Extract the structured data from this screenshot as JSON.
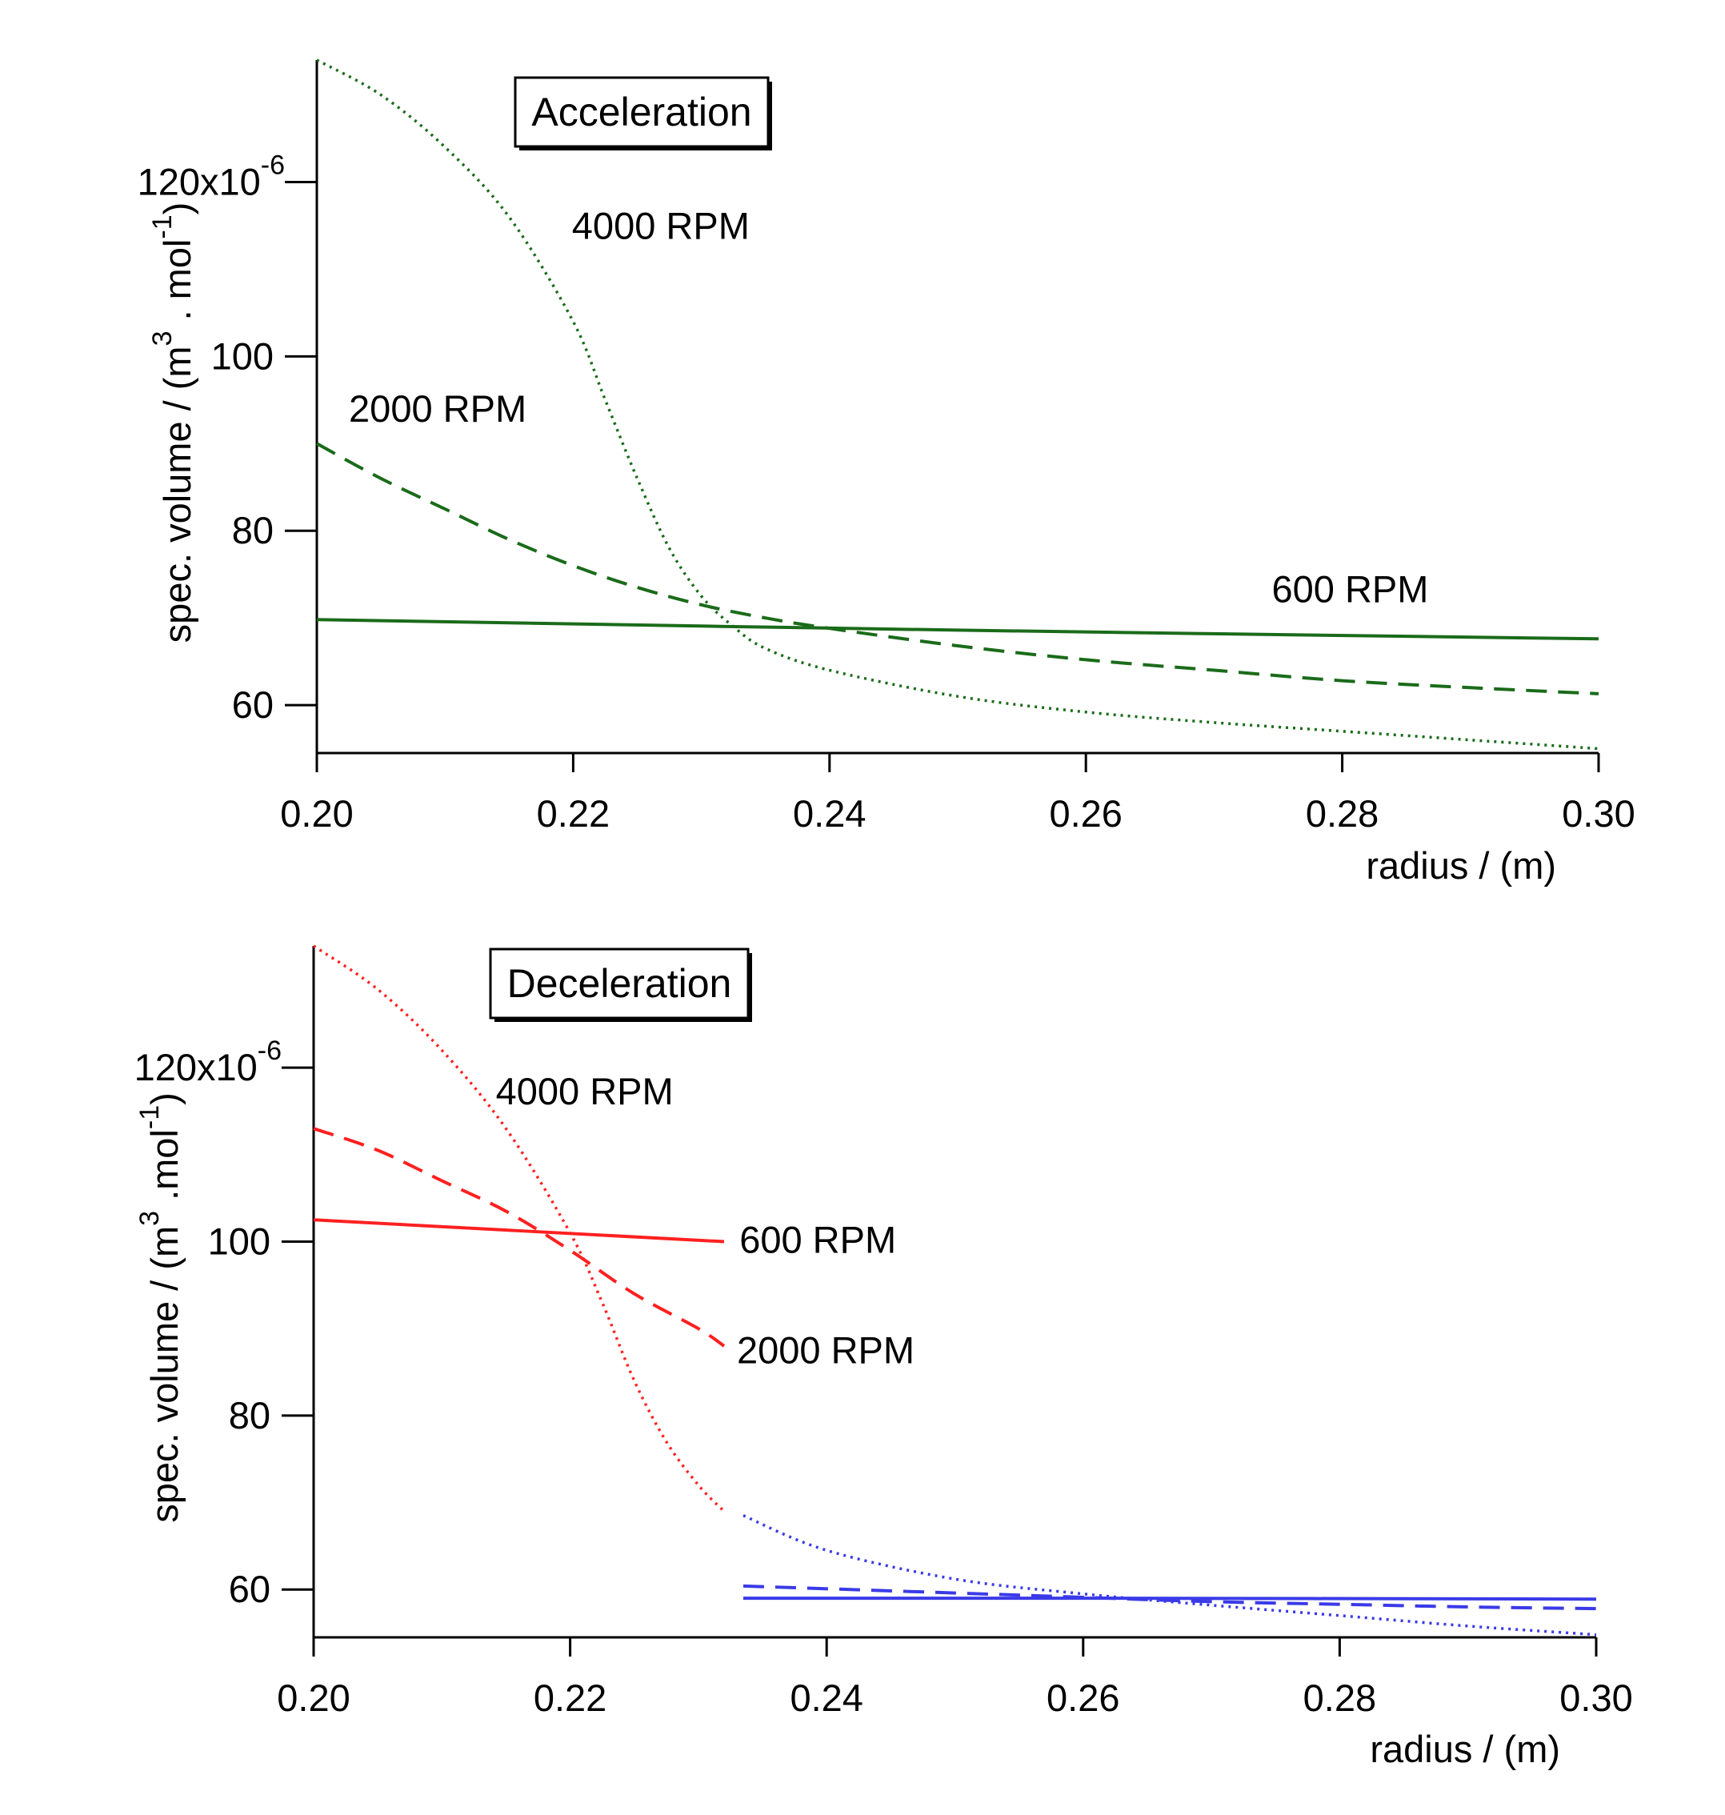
{
  "chart_data": [
    {
      "type": "line",
      "panel": "Acceleration",
      "annotation_box": "Acceleration",
      "xlabel": "radius / (m)",
      "ylabel": {
        "prefix": "spec. volume / (m",
        "sup1": "3",
        "middle": " . mol",
        "sup2": "-1",
        "suffix": ")"
      },
      "xlim": [
        0.2,
        0.3
      ],
      "ylim": [
        54.5,
        134
      ],
      "xticks": [
        "0.20",
        "0.22",
        "0.24",
        "0.26",
        "0.28",
        "0.30"
      ],
      "xtick_values": [
        0.2,
        0.22,
        0.24,
        0.26,
        0.28,
        0.3
      ],
      "yticks": [
        {
          "value": 60,
          "label": "60"
        },
        {
          "value": 80,
          "label": "80"
        },
        {
          "value": 100,
          "label": "100"
        },
        {
          "value": 120,
          "label": "120x10",
          "exponent": "-6"
        }
      ],
      "series": [
        {
          "name": "4000 RPM",
          "color": "#1a6b1a",
          "dash": "dotted",
          "x": [
            0.2,
            0.205,
            0.21,
            0.215,
            0.22,
            0.2225,
            0.225,
            0.2275,
            0.23,
            0.2325,
            0.235,
            0.24,
            0.25,
            0.26,
            0.27,
            0.28,
            0.29,
            0.3
          ],
          "y": [
            134,
            130,
            124,
            116,
            104,
            95,
            86,
            78,
            72.5,
            69,
            66.5,
            64,
            61,
            59.2,
            58,
            57,
            56,
            55
          ]
        },
        {
          "name": "2000 RPM",
          "color": "#1a6b1a",
          "dash": "dashed",
          "x": [
            0.2,
            0.205,
            0.21,
            0.215,
            0.22,
            0.225,
            0.23,
            0.235,
            0.24,
            0.25,
            0.26,
            0.27,
            0.28,
            0.29,
            0.3
          ],
          "y": [
            90,
            86,
            82.5,
            79,
            76,
            73.5,
            71.5,
            70,
            68.8,
            66.8,
            65.2,
            64,
            62.8,
            62,
            61.3
          ]
        },
        {
          "name": "600 RPM",
          "color": "#1a6b1a",
          "dash": "solid",
          "x": [
            0.2,
            0.25,
            0.3
          ],
          "y": [
            69.8,
            68.6,
            67.6
          ]
        }
      ],
      "labels": [
        {
          "text": "4000 RPM",
          "x": 0.2199,
          "y": 113.5
        },
        {
          "text": "2000 RPM",
          "x": 0.2025,
          "y": 92.5
        },
        {
          "text": "600 RPM",
          "x": 0.2745,
          "y": 71.8
        }
      ]
    },
    {
      "type": "line",
      "panel": "Deceleration",
      "annotation_box": "Deceleration",
      "xlabel": "radius / (m)",
      "ylabel": {
        "prefix": "spec. volume / (m",
        "sup1": "3",
        "middle": " .mol",
        "sup2": "-1",
        "suffix": ")"
      },
      "xlim": [
        0.2,
        0.3
      ],
      "ylim": [
        54.5,
        134
      ],
      "xticks": [
        "0.20",
        "0.22",
        "0.24",
        "0.26",
        "0.28",
        "0.30"
      ],
      "xtick_values": [
        0.2,
        0.22,
        0.24,
        0.26,
        0.28,
        0.3
      ],
      "yticks": [
        {
          "value": 60,
          "label": "60"
        },
        {
          "value": 80,
          "label": "80"
        },
        {
          "value": 100,
          "label": "100"
        },
        {
          "value": 120,
          "label": "120x10",
          "exponent": "-6"
        }
      ],
      "series": [
        {
          "name": "4000 RPM",
          "color": "#ff2020",
          "dash": "dotted",
          "x": [
            0.2,
            0.205,
            0.21,
            0.215,
            0.22,
            0.2225,
            0.225,
            0.2275,
            0.23,
            0.232
          ],
          "y": [
            134,
            129,
            122,
            113,
            101,
            93,
            84,
            77,
            72,
            69
          ]
        },
        {
          "name": "2000 RPM",
          "color": "#ff2020",
          "dash": "dashed",
          "x": [
            0.2,
            0.205,
            0.21,
            0.215,
            0.22,
            0.225,
            0.23,
            0.232
          ],
          "y": [
            113,
            110.5,
            107,
            103.5,
            99,
            94,
            90,
            88
          ]
        },
        {
          "name": "600 RPM",
          "color": "#ff2020",
          "dash": "solid",
          "x": [
            0.2,
            0.232
          ],
          "y": [
            102.5,
            100
          ]
        },
        {
          "name": "4000 RPM",
          "color": "#3a3ae8",
          "dash": "dotted",
          "x": [
            0.2335,
            0.24,
            0.25,
            0.26,
            0.27,
            0.28,
            0.29,
            0.3
          ],
          "y": [
            68.5,
            64.5,
            61.2,
            59.5,
            58.2,
            57,
            55.8,
            54.8
          ]
        },
        {
          "name": "2000 RPM",
          "color": "#3a3ae8",
          "dash": "dashed",
          "x": [
            0.2335,
            0.25,
            0.26,
            0.27,
            0.28,
            0.29,
            0.3
          ],
          "y": [
            60.4,
            59.6,
            59.1,
            58.6,
            58.3,
            58.0,
            57.8
          ]
        },
        {
          "name": "600 RPM",
          "color": "#3a3ae8",
          "dash": "solid",
          "x": [
            0.2335,
            0.26,
            0.3
          ],
          "y": [
            59.0,
            59.0,
            58.9
          ]
        }
      ],
      "labels": [
        {
          "text": "4000 RPM",
          "x": 0.2142,
          "y": 115.8
        },
        {
          "text": "600 RPM",
          "x": 0.2332,
          "y": 98.7
        },
        {
          "text": "2000 RPM",
          "x": 0.233,
          "y": 86.0
        }
      ]
    }
  ]
}
